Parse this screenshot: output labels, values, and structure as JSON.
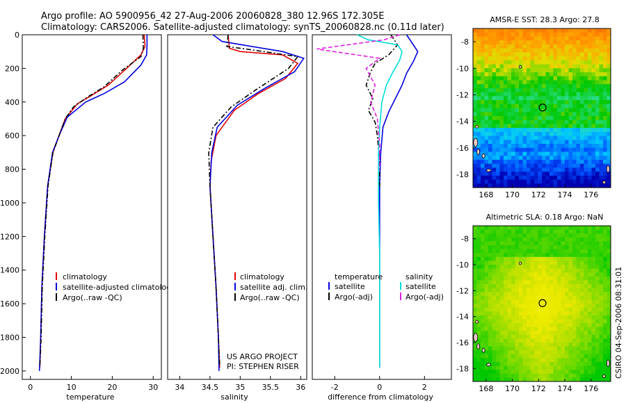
{
  "header": {
    "line1": "Argo profile: AO 5900956_42 27-Aug-2006 20060828_380 12.96S 172.305E",
    "line2": "Climatology: CARS2006. Satellite-adjusted climatology: synTS_20060828.nc (0.11d later)"
  },
  "side_stamp": "CSIRO 04-Sep-2006 08:31:01",
  "project": {
    "line1": "US ARGO PROJECT",
    "line2": "PI: STEPHEN RISER"
  },
  "colors": {
    "climatology": "#e00000",
    "satellite": "#0000e0",
    "argo": "#000000",
    "satellite_salinity": "#00dcdc",
    "argo_salinity": "#e020e0",
    "marker": "#000000"
  },
  "chart_data": [
    {
      "id": "temperature",
      "type": "line",
      "xlabel": "temperature",
      "xlim": [
        -2,
        32
      ],
      "ylim": [
        2050,
        0
      ],
      "xticks": [
        0,
        10,
        20,
        30
      ],
      "yticks": [
        0,
        200,
        400,
        600,
        800,
        1000,
        1200,
        1400,
        1600,
        1800,
        2000
      ],
      "legend": [
        "climatology",
        "satellite-adjusted climatology",
        "Argo(..raw -QC)"
      ],
      "series": [
        {
          "name": "climatology",
          "style": "solid",
          "color_key": "climatology",
          "x": [
            27.8,
            28.0,
            27.0,
            23.5,
            19.0,
            15.0,
            11.5,
            8.5,
            7.0,
            5.5,
            4.2,
            3.4,
            2.8,
            2.5,
            2.3
          ],
          "y": [
            0,
            70,
            120,
            200,
            300,
            360,
            410,
            500,
            600,
            700,
            900,
            1200,
            1500,
            1800,
            1980
          ]
        },
        {
          "name": "satellite-adjusted climatology",
          "style": "solid",
          "color_key": "satellite",
          "x": [
            28.5,
            28.5,
            28.4,
            27.0,
            23.0,
            18.0,
            13.5,
            9.0,
            7.0,
            5.4,
            4.2,
            3.4,
            2.8,
            2.5,
            2.2
          ],
          "y": [
            0,
            60,
            120,
            180,
            280,
            350,
            400,
            490,
            600,
            700,
            900,
            1200,
            1500,
            1800,
            2000
          ]
        },
        {
          "name": "Argo(..raw -QC)",
          "style": "dash-dot",
          "color_key": "argo",
          "x": [
            27.5,
            27.6,
            27.0,
            22.5,
            18.0,
            14.0,
            10.5,
            8.5,
            7.0,
            5.5,
            4.3,
            3.5,
            2.9,
            2.6,
            2.3
          ],
          "y": [
            0,
            80,
            130,
            210,
            310,
            370,
            430,
            500,
            600,
            700,
            900,
            1200,
            1500,
            1800,
            1970
          ]
        }
      ]
    },
    {
      "id": "salinity",
      "type": "line",
      "xlabel": "salinity",
      "xlim": [
        33.8,
        36.1
      ],
      "ylim": [
        2050,
        0
      ],
      "xticks": [
        34,
        34.5,
        35,
        35.5,
        36
      ],
      "legend": [
        "climatology",
        "satellite adj. clim.",
        "Argo(..raw -QC)"
      ],
      "series": [
        {
          "name": "climatology",
          "style": "solid",
          "color_key": "climatology",
          "x": [
            34.8,
            34.82,
            35.0,
            35.7,
            35.95,
            35.75,
            35.3,
            34.9,
            34.6,
            34.52,
            34.5,
            34.55,
            34.6,
            34.64,
            34.66
          ],
          "y": [
            0,
            80,
            100,
            120,
            170,
            260,
            350,
            450,
            600,
            750,
            900,
            1200,
            1500,
            1800,
            1980
          ]
        },
        {
          "name": "satellite adj. clim.",
          "style": "solid",
          "color_key": "satellite",
          "x": [
            34.55,
            34.7,
            35.7,
            36.05,
            35.9,
            35.4,
            34.95,
            34.62,
            34.53,
            34.5,
            34.55,
            34.6,
            34.64,
            34.65
          ],
          "y": [
            0,
            40,
            100,
            140,
            220,
            320,
            420,
            550,
            700,
            900,
            1200,
            1500,
            1800,
            2000
          ]
        },
        {
          "name": "Argo(..raw -QC)",
          "style": "dash-dot",
          "color_key": "argo",
          "x": [
            34.8,
            34.78,
            35.2,
            35.95,
            35.8,
            35.25,
            34.85,
            34.55,
            34.48,
            34.5,
            34.55,
            34.6,
            34.64,
            34.66
          ],
          "y": [
            0,
            70,
            90,
            130,
            200,
            330,
            430,
            550,
            700,
            900,
            1200,
            1500,
            1800,
            1970
          ]
        }
      ]
    },
    {
      "id": "difference",
      "type": "line",
      "xlabel": "difference from climatology",
      "xlim": [
        -3,
        3.2
      ],
      "ylim": [
        2050,
        0
      ],
      "xticks": [
        -2,
        0,
        2
      ],
      "legend_title_temperature": "temperature",
      "legend_title_salinity": "salinity",
      "legend": [
        "satellite",
        "Argo(-adj)",
        "satellite",
        "Argo(-adj)"
      ],
      "series": [
        {
          "name": "satellite",
          "group": "temperature",
          "style": "solid",
          "color_key": "satellite",
          "x": [
            1.2,
            1.5,
            1.7,
            1.5,
            1.2,
            1.0,
            0.7,
            0.4,
            0.15,
            0.05,
            0.0,
            0.0,
            0.0,
            0.0
          ],
          "y": [
            0,
            60,
            100,
            160,
            230,
            300,
            380,
            460,
            550,
            700,
            900,
            1200,
            1600,
            1980
          ]
        },
        {
          "name": "Argo(-adj)",
          "group": "temperature",
          "style": "dash-dot",
          "color_key": "argo",
          "x": [
            0.5,
            0.8,
            0.4,
            -0.2,
            -0.4,
            -0.6,
            -0.3,
            -0.5,
            -0.2,
            -0.1,
            0.0,
            0.0
          ],
          "y": [
            0,
            60,
            120,
            170,
            220,
            300,
            380,
            450,
            520,
            600,
            750,
            900
          ]
        },
        {
          "name": "satellite",
          "group": "salinity",
          "style": "solid",
          "color_key": "satellite_salinity",
          "x": [
            -1.0,
            -0.5,
            0.8,
            1.0,
            0.9,
            0.6,
            0.3,
            0.1,
            0.0,
            -0.05,
            -0.05,
            0.0,
            0.0,
            0.0
          ],
          "y": [
            0,
            30,
            60,
            100,
            150,
            220,
            300,
            400,
            550,
            700,
            1000,
            1300,
            1600,
            1980
          ]
        },
        {
          "name": "Argo(-adj)",
          "group": "salinity",
          "style": "dashed",
          "color_key": "argo_salinity",
          "x": [
            0.9,
            0.2,
            -2.8,
            0.0,
            -0.6,
            -0.2,
            -0.4,
            -0.1,
            0.0,
            0.0
          ],
          "y": [
            0,
            30,
            85,
            140,
            200,
            300,
            400,
            500,
            650,
            800
          ]
        }
      ]
    },
    {
      "id": "sst-map",
      "type": "heatmap",
      "title": "AMSR-E SST: 28.3 Argo: 27.8",
      "xticks": [
        168,
        170,
        172,
        174,
        176
      ],
      "yticks": [
        -8,
        -10,
        -12,
        -14,
        -16,
        -18
      ],
      "xlim": [
        167,
        177.5
      ],
      "ylim": [
        -19,
        -7
      ],
      "argo_position": [
        172.305,
        -12.96
      ],
      "colorscale": [
        "#0000b0",
        "#0050ff",
        "#00c8ff",
        "#30e0a0",
        "#00c800",
        "#e0e000",
        "#ffa000",
        "#ff7000"
      ],
      "value_range": [
        26.5,
        29.5
      ]
    },
    {
      "id": "sla-map",
      "type": "heatmap",
      "title": "Altimetric SLA: 0.18 Argo: NaN",
      "xticks": [
        168,
        170,
        172,
        174,
        176
      ],
      "yticks": [
        -8,
        -10,
        -12,
        -14,
        -16,
        -18
      ],
      "xlim": [
        167,
        177.5
      ],
      "ylim": [
        -19,
        -7
      ],
      "argo_position": [
        172.305,
        -12.96
      ],
      "colorscale": [
        "#00c800",
        "#60d800",
        "#b0e000",
        "#e8e800",
        "#f0f000"
      ],
      "value_range": [
        0.1,
        0.3
      ]
    }
  ]
}
